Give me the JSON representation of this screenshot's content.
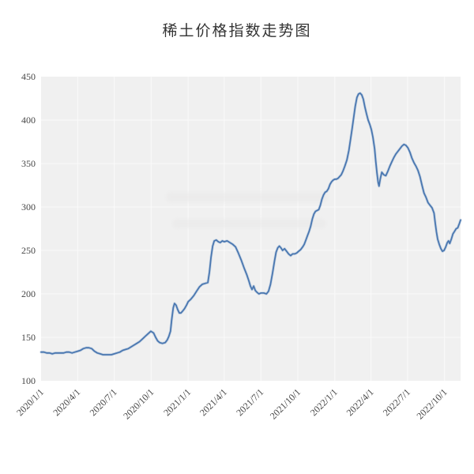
{
  "chart_data": {
    "type": "line",
    "title": "稀土价格指数走势图",
    "xlabel": "",
    "ylabel": "",
    "ylim": [
      100,
      450
    ],
    "yticks": [
      100,
      150,
      200,
      250,
      300,
      350,
      400,
      450
    ],
    "xticks": [
      "2020/1/1",
      "2020/4/1",
      "2020/7/1",
      "2020/10/1",
      "2021/1/1",
      "2021/4/1",
      "2021/7/1",
      "2021/10/1",
      "2022/1/1",
      "2022/4/1",
      "2022/7/1",
      "2022/10/1"
    ],
    "grid": true,
    "legend_position": "none",
    "plot_bg": "#f0f0f0",
    "grid_color": "#fafafa",
    "line_color": "#4a77b0",
    "line_halo": "#9db7d6",
    "axis_label_color": "#474747",
    "title_color": "#333333",
    "series": [
      {
        "points": [
          [
            "2020-01-01",
            133
          ],
          [
            "2020-01-08",
            133
          ],
          [
            "2020-01-15",
            132
          ],
          [
            "2020-01-22",
            132
          ],
          [
            "2020-01-29",
            131
          ],
          [
            "2020-02-05",
            132
          ],
          [
            "2020-02-12",
            132
          ],
          [
            "2020-02-19",
            132
          ],
          [
            "2020-02-26",
            132
          ],
          [
            "2020-03-04",
            133
          ],
          [
            "2020-03-11",
            133
          ],
          [
            "2020-03-18",
            132
          ],
          [
            "2020-03-25",
            133
          ],
          [
            "2020-04-01",
            134
          ],
          [
            "2020-04-08",
            135
          ],
          [
            "2020-04-15",
            137
          ],
          [
            "2020-04-22",
            138
          ],
          [
            "2020-04-29",
            138
          ],
          [
            "2020-05-06",
            137
          ],
          [
            "2020-05-13",
            134
          ],
          [
            "2020-05-20",
            132
          ],
          [
            "2020-05-27",
            131
          ],
          [
            "2020-06-03",
            130
          ],
          [
            "2020-06-10",
            130
          ],
          [
            "2020-06-17",
            130
          ],
          [
            "2020-06-24",
            130
          ],
          [
            "2020-07-01",
            131
          ],
          [
            "2020-07-08",
            132
          ],
          [
            "2020-07-15",
            133
          ],
          [
            "2020-07-22",
            135
          ],
          [
            "2020-07-29",
            136
          ],
          [
            "2020-08-05",
            137
          ],
          [
            "2020-08-12",
            139
          ],
          [
            "2020-08-19",
            141
          ],
          [
            "2020-08-26",
            143
          ],
          [
            "2020-09-02",
            145
          ],
          [
            "2020-09-09",
            148
          ],
          [
            "2020-09-16",
            151
          ],
          [
            "2020-09-23",
            154
          ],
          [
            "2020-09-30",
            157
          ],
          [
            "2020-10-07",
            155
          ],
          [
            "2020-10-12",
            150
          ],
          [
            "2020-10-17",
            146
          ],
          [
            "2020-10-22",
            144
          ],
          [
            "2020-10-29",
            143
          ],
          [
            "2020-11-05",
            144
          ],
          [
            "2020-11-10",
            147
          ],
          [
            "2020-11-14",
            151
          ],
          [
            "2020-11-18",
            157
          ],
          [
            "2020-11-21",
            170
          ],
          [
            "2020-11-25",
            184
          ],
          [
            "2020-11-28",
            189
          ],
          [
            "2020-12-02",
            187
          ],
          [
            "2020-12-06",
            182
          ],
          [
            "2020-12-10",
            178
          ],
          [
            "2020-12-14",
            178
          ],
          [
            "2020-12-18",
            180
          ],
          [
            "2020-12-23",
            183
          ],
          [
            "2020-12-28",
            187
          ],
          [
            "2021-01-01",
            191
          ],
          [
            "2021-01-08",
            194
          ],
          [
            "2021-01-15",
            198
          ],
          [
            "2021-01-22",
            203
          ],
          [
            "2021-01-29",
            208
          ],
          [
            "2021-02-05",
            211
          ],
          [
            "2021-02-12",
            212
          ],
          [
            "2021-02-19",
            213
          ],
          [
            "2021-02-23",
            225
          ],
          [
            "2021-02-27",
            242
          ],
          [
            "2021-03-03",
            255
          ],
          [
            "2021-03-07",
            261
          ],
          [
            "2021-03-12",
            262
          ],
          [
            "2021-03-17",
            260
          ],
          [
            "2021-03-22",
            259
          ],
          [
            "2021-03-27",
            261
          ],
          [
            "2021-04-01",
            260
          ],
          [
            "2021-04-08",
            261
          ],
          [
            "2021-04-15",
            259
          ],
          [
            "2021-04-22",
            257
          ],
          [
            "2021-04-29",
            254
          ],
          [
            "2021-05-06",
            247
          ],
          [
            "2021-05-13",
            239
          ],
          [
            "2021-05-20",
            230
          ],
          [
            "2021-05-27",
            222
          ],
          [
            "2021-06-01",
            215
          ],
          [
            "2021-06-05",
            209
          ],
          [
            "2021-06-09",
            205
          ],
          [
            "2021-06-13",
            209
          ],
          [
            "2021-06-17",
            204
          ],
          [
            "2021-06-21",
            202
          ],
          [
            "2021-06-26",
            200
          ],
          [
            "2021-07-01",
            201
          ],
          [
            "2021-07-08",
            201
          ],
          [
            "2021-07-15",
            200
          ],
          [
            "2021-07-20",
            203
          ],
          [
            "2021-07-25",
            211
          ],
          [
            "2021-07-30",
            224
          ],
          [
            "2021-08-04",
            238
          ],
          [
            "2021-08-08",
            248
          ],
          [
            "2021-08-12",
            253
          ],
          [
            "2021-08-16",
            255
          ],
          [
            "2021-08-20",
            253
          ],
          [
            "2021-08-24",
            250
          ],
          [
            "2021-08-29",
            252
          ],
          [
            "2021-09-03",
            249
          ],
          [
            "2021-09-08",
            246
          ],
          [
            "2021-09-13",
            244
          ],
          [
            "2021-09-18",
            246
          ],
          [
            "2021-09-23",
            246
          ],
          [
            "2021-09-28",
            247
          ],
          [
            "2021-10-03",
            249
          ],
          [
            "2021-10-08",
            251
          ],
          [
            "2021-10-13",
            254
          ],
          [
            "2021-10-17",
            257
          ],
          [
            "2021-10-21",
            262
          ],
          [
            "2021-10-25",
            267
          ],
          [
            "2021-10-29",
            272
          ],
          [
            "2021-11-02",
            278
          ],
          [
            "2021-11-06",
            286
          ],
          [
            "2021-11-10",
            292
          ],
          [
            "2021-11-14",
            295
          ],
          [
            "2021-11-18",
            296
          ],
          [
            "2021-11-22",
            297
          ],
          [
            "2021-11-26",
            302
          ],
          [
            "2021-11-30",
            309
          ],
          [
            "2021-12-04",
            314
          ],
          [
            "2021-12-08",
            317
          ],
          [
            "2021-12-12",
            318
          ],
          [
            "2021-12-16",
            321
          ],
          [
            "2021-12-20",
            326
          ],
          [
            "2021-12-24",
            329
          ],
          [
            "2021-12-28",
            331
          ],
          [
            "2022-01-01",
            332
          ],
          [
            "2022-01-05",
            332
          ],
          [
            "2022-01-09",
            333
          ],
          [
            "2022-01-13",
            335
          ],
          [
            "2022-01-17",
            337
          ],
          [
            "2022-01-21",
            341
          ],
          [
            "2022-01-26",
            347
          ],
          [
            "2022-01-31",
            354
          ],
          [
            "2022-02-05",
            365
          ],
          [
            "2022-02-09",
            377
          ],
          [
            "2022-02-13",
            390
          ],
          [
            "2022-02-17",
            403
          ],
          [
            "2022-02-21",
            416
          ],
          [
            "2022-02-25",
            426
          ],
          [
            "2022-03-01",
            430
          ],
          [
            "2022-03-05",
            431
          ],
          [
            "2022-03-09",
            429
          ],
          [
            "2022-03-13",
            424
          ],
          [
            "2022-03-17",
            415
          ],
          [
            "2022-03-21",
            407
          ],
          [
            "2022-03-25",
            400
          ],
          [
            "2022-03-29",
            395
          ],
          [
            "2022-04-02",
            389
          ],
          [
            "2022-04-06",
            380
          ],
          [
            "2022-04-10",
            367
          ],
          [
            "2022-04-13",
            352
          ],
          [
            "2022-04-16",
            339
          ],
          [
            "2022-04-19",
            328
          ],
          [
            "2022-04-21",
            324
          ],
          [
            "2022-04-24",
            332
          ],
          [
            "2022-04-28",
            340
          ],
          [
            "2022-05-03",
            337
          ],
          [
            "2022-05-08",
            336
          ],
          [
            "2022-05-13",
            341
          ],
          [
            "2022-05-18",
            347
          ],
          [
            "2022-05-23",
            352
          ],
          [
            "2022-05-28",
            357
          ],
          [
            "2022-06-02",
            361
          ],
          [
            "2022-06-07",
            364
          ],
          [
            "2022-06-12",
            367
          ],
          [
            "2022-06-17",
            370
          ],
          [
            "2022-06-22",
            372
          ],
          [
            "2022-06-27",
            371
          ],
          [
            "2022-07-02",
            368
          ],
          [
            "2022-07-07",
            363
          ],
          [
            "2022-07-12",
            356
          ],
          [
            "2022-07-17",
            351
          ],
          [
            "2022-07-22",
            347
          ],
          [
            "2022-07-27",
            342
          ],
          [
            "2022-08-01",
            335
          ],
          [
            "2022-08-06",
            325
          ],
          [
            "2022-08-11",
            316
          ],
          [
            "2022-08-16",
            311
          ],
          [
            "2022-08-21",
            305
          ],
          [
            "2022-08-26",
            302
          ],
          [
            "2022-08-31",
            299
          ],
          [
            "2022-09-05",
            293
          ],
          [
            "2022-09-08",
            281
          ],
          [
            "2022-09-11",
            271
          ],
          [
            "2022-09-14",
            263
          ],
          [
            "2022-09-18",
            257
          ],
          [
            "2022-09-22",
            252
          ],
          [
            "2022-09-26",
            249
          ],
          [
            "2022-09-30",
            250
          ],
          [
            "2022-10-04",
            254
          ],
          [
            "2022-10-08",
            259
          ],
          [
            "2022-10-11",
            261
          ],
          [
            "2022-10-14",
            258
          ],
          [
            "2022-10-18",
            263
          ],
          [
            "2022-10-22",
            269
          ],
          [
            "2022-10-26",
            272
          ],
          [
            "2022-10-30",
            275
          ],
          [
            "2022-11-03",
            276
          ],
          [
            "2022-11-07",
            281
          ],
          [
            "2022-11-10",
            285
          ]
        ]
      }
    ]
  }
}
